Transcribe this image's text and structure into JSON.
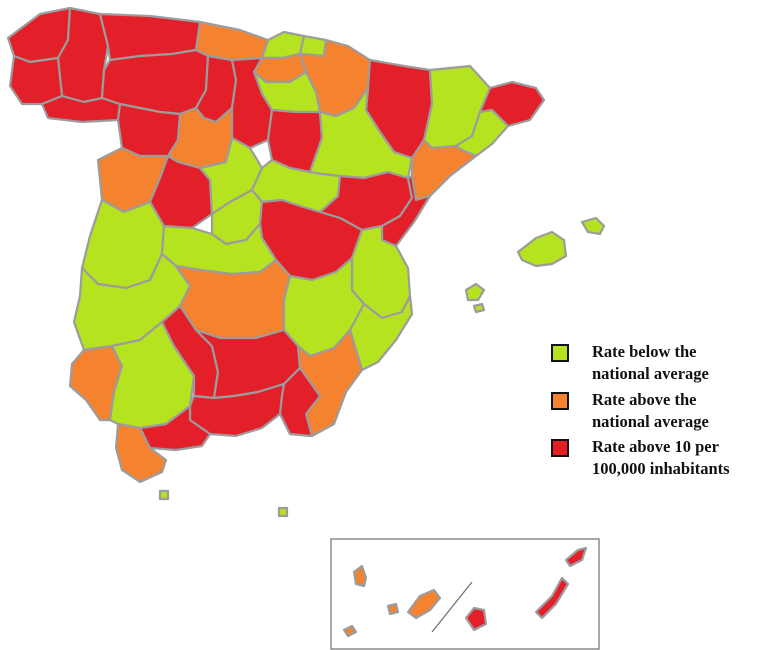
{
  "colors": {
    "below_average": "#b5e31f",
    "above_average": "#f5822e",
    "above_10": "#e31f29",
    "border": "#9c9c9c"
  },
  "legend": {
    "items": [
      {
        "key": "below_average",
        "label": "Rate below the national average"
      },
      {
        "key": "above_average",
        "label": "Rate above the national average"
      },
      {
        "key": "above_10",
        "label": "Rate above 10 per 100,000 inhabitants"
      }
    ]
  }
}
